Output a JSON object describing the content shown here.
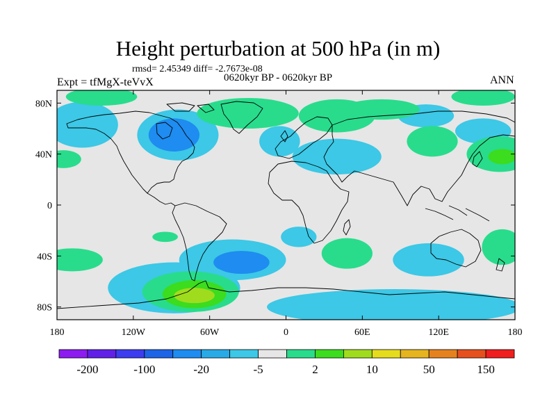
{
  "chart_data": {
    "type": "heatmap",
    "title": "Height perturbation at 500 hPa (in m)",
    "stats_text": "rmsd= 2.45349 diff= -2.7673e-08",
    "left_label": "Expt = tfMgX-teVvX",
    "center_label": "0620kyr BP - 0620kyr BP",
    "right_label": "ANN",
    "projection": "cylindrical-equidistant",
    "x_range": [
      -180,
      180
    ],
    "y_range": [
      -90,
      90
    ],
    "x_ticks": [
      {
        "value": -180,
        "label": "180"
      },
      {
        "value": -120,
        "label": "120W"
      },
      {
        "value": -60,
        "label": "60W"
      },
      {
        "value": 0,
        "label": "0"
      },
      {
        "value": 60,
        "label": "60E"
      },
      {
        "value": 120,
        "label": "120E"
      },
      {
        "value": 180,
        "label": "180"
      }
    ],
    "y_ticks": [
      {
        "value": 80,
        "label": "80N"
      },
      {
        "value": 40,
        "label": "40N"
      },
      {
        "value": 0,
        "label": "0"
      },
      {
        "value": -40,
        "label": "40S"
      },
      {
        "value": -80,
        "label": "80S"
      }
    ],
    "colorbar": {
      "colors": [
        "#8c1cf0",
        "#6020e8",
        "#3c3cf0",
        "#1e64e6",
        "#1e8cf0",
        "#28aae6",
        "#3cc8e6",
        "#e6e6e6",
        "#28dc8c",
        "#3cdc1e",
        "#a0dc1e",
        "#e6dc1e",
        "#e6b41e",
        "#e6821e",
        "#e6501e",
        "#f01e1e"
      ],
      "labels": [
        "-200",
        "-100",
        "-20",
        "-5",
        "2",
        "10",
        "50",
        "150"
      ]
    },
    "regions": [
      {
        "level": "-5",
        "color": "#3cc8e6",
        "center": [
          -160,
          63
        ],
        "radius": [
          28,
          18
        ]
      },
      {
        "level": "-5",
        "color": "#3cc8e6",
        "center": [
          -85,
          55
        ],
        "radius": [
          32,
          20
        ]
      },
      {
        "level": "-20",
        "color": "#1e8cf0",
        "center": [
          -88,
          55
        ],
        "radius": [
          20,
          13
        ]
      },
      {
        "level": "-5",
        "color": "#3cc8e6",
        "center": [
          -5,
          50
        ],
        "radius": [
          16,
          12
        ]
      },
      {
        "level": "-5",
        "color": "#3cc8e6",
        "center": [
          40,
          38
        ],
        "radius": [
          35,
          14
        ]
      },
      {
        "level": "-5",
        "color": "#3cc8e6",
        "center": [
          110,
          70
        ],
        "radius": [
          22,
          9
        ]
      },
      {
        "level": "-5",
        "color": "#3cc8e6",
        "center": [
          155,
          58
        ],
        "radius": [
          22,
          10
        ]
      },
      {
        "level": "-5",
        "color": "#3cc8e6",
        "center": [
          10,
          -25
        ],
        "radius": [
          14,
          8
        ]
      },
      {
        "level": "-5",
        "color": "#3cc8e6",
        "center": [
          -42,
          -43
        ],
        "radius": [
          42,
          16
        ]
      },
      {
        "level": "-20",
        "color": "#1e8cf0",
        "center": [
          -35,
          -45
        ],
        "radius": [
          22,
          9
        ]
      },
      {
        "level": "-5",
        "color": "#3cc8e6",
        "center": [
          112,
          -43
        ],
        "radius": [
          28,
          13
        ]
      },
      {
        "level": "-5",
        "color": "#3cc8e6",
        "center": [
          85,
          -80
        ],
        "radius": [
          100,
          14
        ]
      },
      {
        "level": "-5",
        "color": "#3cc8e6",
        "center": [
          -88,
          -65
        ],
        "radius": [
          52,
          20
        ]
      },
      {
        "level": "2",
        "color": "#28dc8c",
        "center": [
          -75,
          -68
        ],
        "radius": [
          38,
          16
        ]
      },
      {
        "level": "10",
        "color": "#3cdc1e",
        "center": [
          -72,
          -70
        ],
        "radius": [
          25,
          11
        ]
      },
      {
        "level": "50",
        "color": "#a0dc1e",
        "center": [
          -72,
          -71
        ],
        "radius": [
          16,
          6
        ]
      },
      {
        "level": "2",
        "color": "#28dc8c",
        "center": [
          -145,
          85
        ],
        "radius": [
          28,
          7
        ]
      },
      {
        "level": "2",
        "color": "#28dc8c",
        "center": [
          -175,
          36
        ],
        "radius": [
          14,
          7
        ]
      },
      {
        "level": "2",
        "color": "#28dc8c",
        "center": [
          -30,
          72
        ],
        "radius": [
          40,
          12
        ]
      },
      {
        "level": "2",
        "color": "#28dc8c",
        "center": [
          40,
          70
        ],
        "radius": [
          30,
          13
        ]
      },
      {
        "level": "2",
        "color": "#28dc8c",
        "center": [
          75,
          75
        ],
        "radius": [
          30,
          8
        ]
      },
      {
        "level": "2",
        "color": "#28dc8c",
        "center": [
          155,
          85
        ],
        "radius": [
          25,
          7
        ]
      },
      {
        "level": "2",
        "color": "#28dc8c",
        "center": [
          115,
          50
        ],
        "radius": [
          20,
          12
        ]
      },
      {
        "level": "2",
        "color": "#28dc8c",
        "center": [
          168,
          40
        ],
        "radius": [
          26,
          14
        ]
      },
      {
        "level": "10",
        "color": "#3cdc1e",
        "center": [
          170,
          38
        ],
        "radius": [
          11,
          6
        ]
      },
      {
        "level": "2",
        "color": "#28dc8c",
        "center": [
          -168,
          -43
        ],
        "radius": [
          24,
          9
        ]
      },
      {
        "level": "2",
        "color": "#28dc8c",
        "center": [
          -95,
          -25
        ],
        "radius": [
          10,
          4
        ]
      },
      {
        "level": "2",
        "color": "#28dc8c",
        "center": [
          48,
          -38
        ],
        "radius": [
          20,
          12
        ]
      },
      {
        "level": "2",
        "color": "#28dc8c",
        "center": [
          170,
          -33
        ],
        "radius": [
          16,
          14
        ]
      }
    ]
  }
}
